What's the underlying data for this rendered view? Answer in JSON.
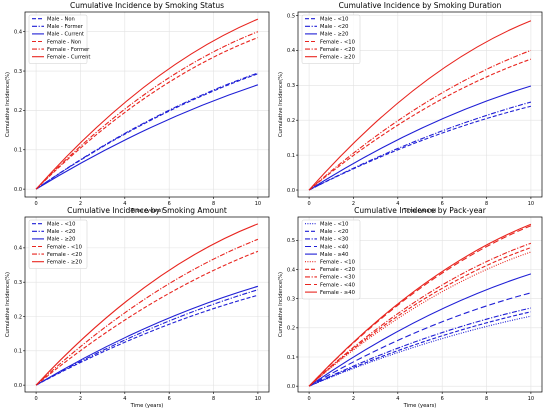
{
  "figure_colors": {
    "male": "#1f1fd6",
    "female": "#e8251f"
  },
  "chart_data": [
    {
      "type": "line",
      "title": "Cumulative Incidence by Smoking Status",
      "xlabel": "Time (years)",
      "ylabel": "Cumulative Incidence(%)",
      "xlim": [
        -0.5,
        10.5
      ],
      "ylim": [
        -0.02,
        0.45
      ],
      "xticks": [
        0,
        2,
        4,
        6,
        8,
        10
      ],
      "yticks": [
        0.0,
        0.1,
        0.2,
        0.3,
        0.4
      ],
      "grid": true,
      "legend_position": "top-left",
      "series": [
        {
          "name": "Male - Non",
          "color": "male",
          "dash": "dashed",
          "x": [
            0,
            5,
            10
          ],
          "y": [
            0,
            0.17,
            0.293
          ]
        },
        {
          "name": "Male - Former",
          "color": "male",
          "dash": "dashdot",
          "x": [
            0,
            5,
            10
          ],
          "y": [
            0,
            0.172,
            0.295
          ]
        },
        {
          "name": "Male - Current",
          "color": "male",
          "dash": "solid",
          "x": [
            0,
            5,
            10
          ],
          "y": [
            0,
            0.152,
            0.265
          ]
        },
        {
          "name": "Female - Non",
          "color": "female",
          "dash": "dashed",
          "x": [
            0,
            5,
            10
          ],
          "y": [
            0,
            0.235,
            0.385
          ]
        },
        {
          "name": "Female - Former",
          "color": "female",
          "dash": "dashdot",
          "x": [
            0,
            5,
            10
          ],
          "y": [
            0,
            0.245,
            0.4
          ]
        },
        {
          "name": "Female - Current",
          "color": "female",
          "dash": "solid",
          "x": [
            0,
            5,
            10
          ],
          "y": [
            0,
            0.265,
            0.432
          ]
        }
      ]
    },
    {
      "type": "line",
      "title": "Cumulative Incidence by Smoking Duration",
      "xlabel": "Time (years)",
      "ylabel": "Cumulative Incidence(%)",
      "xlim": [
        -0.5,
        10.5
      ],
      "ylim": [
        -0.02,
        0.51
      ],
      "xticks": [
        0,
        2,
        4,
        6,
        8,
        10
      ],
      "yticks": [
        0.0,
        0.1,
        0.2,
        0.3,
        0.4,
        0.5
      ],
      "grid": true,
      "legend_position": "top-left",
      "series": [
        {
          "name": "Male - <10",
          "color": "male",
          "dash": "dashed",
          "x": [
            0,
            5,
            10
          ],
          "y": [
            0,
            0.14,
            0.24
          ]
        },
        {
          "name": "Male - <20",
          "color": "male",
          "dash": "dashdot",
          "x": [
            0,
            5,
            10
          ],
          "y": [
            0,
            0.145,
            0.252
          ]
        },
        {
          "name": "Male - ≥20",
          "color": "male",
          "dash": "solid",
          "x": [
            0,
            5,
            10
          ],
          "y": [
            0,
            0.175,
            0.298
          ]
        },
        {
          "name": "Female - <10",
          "color": "female",
          "dash": "dashed",
          "x": [
            0,
            5,
            10
          ],
          "y": [
            0,
            0.225,
            0.375
          ]
        },
        {
          "name": "Female - <20",
          "color": "female",
          "dash": "dashdot",
          "x": [
            0,
            5,
            10
          ],
          "y": [
            0,
            0.24,
            0.4
          ]
        },
        {
          "name": "Female - ≥20",
          "color": "female",
          "dash": "solid",
          "x": [
            0,
            5,
            10
          ],
          "y": [
            0,
            0.3,
            0.485
          ]
        }
      ]
    },
    {
      "type": "line",
      "title": "Cumulative Incidence by Smoking Amount",
      "xlabel": "Time (years)",
      "ylabel": "Cumulative Incidence(%)",
      "xlim": [
        -0.5,
        10.5
      ],
      "ylim": [
        -0.02,
        0.49
      ],
      "xticks": [
        0,
        2,
        4,
        6,
        8,
        10
      ],
      "yticks": [
        0.0,
        0.1,
        0.2,
        0.3,
        0.4
      ],
      "grid": true,
      "legend_position": "top-left",
      "series": [
        {
          "name": "Male - <10",
          "color": "male",
          "dash": "dashed",
          "x": [
            0,
            5,
            10
          ],
          "y": [
            0,
            0.152,
            0.262
          ]
        },
        {
          "name": "Male - <20",
          "color": "male",
          "dash": "dashdot",
          "x": [
            0,
            5,
            10
          ],
          "y": [
            0,
            0.16,
            0.278
          ]
        },
        {
          "name": "Male - ≥20",
          "color": "male",
          "dash": "solid",
          "x": [
            0,
            5,
            10
          ],
          "y": [
            0,
            0.168,
            0.288
          ]
        },
        {
          "name": "Female - <10",
          "color": "female",
          "dash": "dashed",
          "x": [
            0,
            5,
            10
          ],
          "y": [
            0,
            0.23,
            0.39
          ]
        },
        {
          "name": "Female - <20",
          "color": "female",
          "dash": "dashdot",
          "x": [
            0,
            5,
            10
          ],
          "y": [
            0,
            0.255,
            0.425
          ]
        },
        {
          "name": "Female - ≥20",
          "color": "female",
          "dash": "solid",
          "x": [
            0,
            5,
            10
          ],
          "y": [
            0,
            0.29,
            0.47
          ]
        }
      ]
    },
    {
      "type": "line",
      "title": "Cumulative Incidence by Pack-year",
      "xlabel": "Time (years)",
      "ylabel": "Cumulative Incidence(%)",
      "xlim": [
        -0.5,
        10.5
      ],
      "ylim": [
        -0.02,
        0.58
      ],
      "xticks": [
        0,
        2,
        4,
        6,
        8,
        10
      ],
      "yticks": [
        0.0,
        0.1,
        0.2,
        0.3,
        0.4,
        0.5
      ],
      "grid": true,
      "legend_position": "top-left",
      "series": [
        {
          "name": "Male - <10",
          "color": "male",
          "dash": "dotted",
          "x": [
            0,
            5,
            10
          ],
          "y": [
            0,
            0.14,
            0.24
          ]
        },
        {
          "name": "Male - <20",
          "color": "male",
          "dash": "dashed",
          "x": [
            0,
            5,
            10
          ],
          "y": [
            0,
            0.148,
            0.255
          ]
        },
        {
          "name": "Male - <30",
          "color": "male",
          "dash": "dashdot",
          "x": [
            0,
            5,
            10
          ],
          "y": [
            0,
            0.158,
            0.268
          ]
        },
        {
          "name": "Male - <40",
          "color": "male",
          "dash": "loosedash",
          "x": [
            0,
            5,
            10
          ],
          "y": [
            0,
            0.19,
            0.32
          ]
        },
        {
          "name": "Male - ≥40",
          "color": "male",
          "dash": "solid",
          "x": [
            0,
            5,
            10
          ],
          "y": [
            0,
            0.228,
            0.385
          ]
        },
        {
          "name": "Female - <10",
          "color": "female",
          "dash": "dotted",
          "x": [
            0,
            5,
            10
          ],
          "y": [
            0,
            0.28,
            0.46
          ]
        },
        {
          "name": "Female - <20",
          "color": "female",
          "dash": "dashed",
          "x": [
            0,
            5,
            10
          ],
          "y": [
            0,
            0.29,
            0.475
          ]
        },
        {
          "name": "Female - <30",
          "color": "female",
          "dash": "dashdot",
          "x": [
            0,
            5,
            10
          ],
          "y": [
            0,
            0.3,
            0.49
          ]
        },
        {
          "name": "Female - <40",
          "color": "female",
          "dash": "loosedash",
          "x": [
            0,
            5,
            10
          ],
          "y": [
            0,
            0.335,
            0.55
          ]
        },
        {
          "name": "Female - ≥40",
          "color": "female",
          "dash": "solid",
          "x": [
            0,
            5,
            10
          ],
          "y": [
            0,
            0.34,
            0.555
          ]
        }
      ]
    }
  ]
}
